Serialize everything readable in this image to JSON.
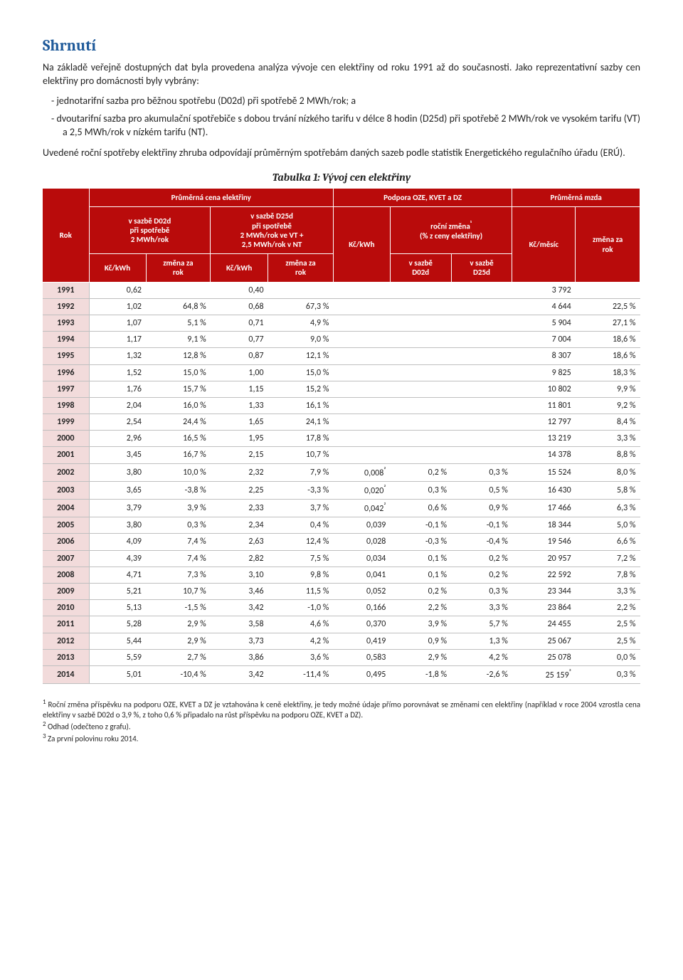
{
  "section_title": "Shrnutí",
  "para1": "Na základě veřejně dostupných dat byla provedena analýza vývoje cen elektřiny od roku 1991 až do současnosti. Jako reprezentativní sazby cen elektřiny pro domácnosti byly vybrány:",
  "bullet1": "jednotarifní sazba pro běžnou spotřebu (D02d) při spotřebě 2 MWh/rok; a",
  "bullet2": "dvoutarifní sazba pro akumulační spotřebiče s dobou trvání nízkého tarifu v délce 8 hodin (D25d) při spotřebě 2 MWh/rok ve vysokém tarifu (VT) a 2,5 MWh/rok v nízkém tarifu (NT).",
  "para2": "Uvedené roční spotřeby elektřiny zhruba odpovídají průměrným spotřebám daných sazeb podle statistik Energetického regulačního úřadu (ERÚ).",
  "table_caption": "Tabulka 1: Vývoj cen elektřiny",
  "headers": {
    "group_avgprice": "Průměrná cena elektřiny",
    "group_support": "Podpora OZE, KVET a DZ",
    "group_wage": "Průměrná mzda",
    "rok": "Rok",
    "d02d": "v sazbě D02d\npři spotřebě\n2 MWh/rok",
    "d25d": "v sazbě D25d\npři spotřebě\n2 MWh/rok ve VT +\n2,5 MWh/rok v NT",
    "annual_change": "roční změna¹\n(% z ceny elektřiny)",
    "kc_kwh": "Kč/kWh",
    "zmena_rok": "změna za\nrok",
    "v_sazbe_d02d": "v sazbě\nD02d",
    "v_sazbe_d25d": "v sazbě\nD25d",
    "kc_mesic": "Kč/měsíc"
  },
  "rows": [
    {
      "year": "1991",
      "d02_kc": "0,62",
      "d02_ch": "",
      "d25_kc": "0,40",
      "d25_ch": "",
      "sup_kc": "",
      "sup_d02": "",
      "sup_d25": "",
      "wage": "3 792",
      "wage_ch": ""
    },
    {
      "year": "1992",
      "d02_kc": "1,02",
      "d02_ch": "64,8 %",
      "d25_kc": "0,68",
      "d25_ch": "67,3 %",
      "sup_kc": "",
      "sup_d02": "",
      "sup_d25": "",
      "wage": "4 644",
      "wage_ch": "22,5 %"
    },
    {
      "year": "1993",
      "d02_kc": "1,07",
      "d02_ch": "5,1 %",
      "d25_kc": "0,71",
      "d25_ch": "4,9 %",
      "sup_kc": "",
      "sup_d02": "",
      "sup_d25": "",
      "wage": "5 904",
      "wage_ch": "27,1 %"
    },
    {
      "year": "1994",
      "d02_kc": "1,17",
      "d02_ch": "9,1 %",
      "d25_kc": "0,77",
      "d25_ch": "9,0 %",
      "sup_kc": "",
      "sup_d02": "",
      "sup_d25": "",
      "wage": "7 004",
      "wage_ch": "18,6 %"
    },
    {
      "year": "1995",
      "d02_kc": "1,32",
      "d02_ch": "12,8 %",
      "d25_kc": "0,87",
      "d25_ch": "12,1 %",
      "sup_kc": "",
      "sup_d02": "",
      "sup_d25": "",
      "wage": "8 307",
      "wage_ch": "18,6 %"
    },
    {
      "year": "1996",
      "d02_kc": "1,52",
      "d02_ch": "15,0 %",
      "d25_kc": "1,00",
      "d25_ch": "15,0 %",
      "sup_kc": "",
      "sup_d02": "",
      "sup_d25": "",
      "wage": "9 825",
      "wage_ch": "18,3 %"
    },
    {
      "year": "1997",
      "d02_kc": "1,76",
      "d02_ch": "15,7 %",
      "d25_kc": "1,15",
      "d25_ch": "15,2 %",
      "sup_kc": "",
      "sup_d02": "",
      "sup_d25": "",
      "wage": "10 802",
      "wage_ch": "9,9 %"
    },
    {
      "year": "1998",
      "d02_kc": "2,04",
      "d02_ch": "16,0 %",
      "d25_kc": "1,33",
      "d25_ch": "16,1 %",
      "sup_kc": "",
      "sup_d02": "",
      "sup_d25": "",
      "wage": "11 801",
      "wage_ch": "9,2 %"
    },
    {
      "year": "1999",
      "d02_kc": "2,54",
      "d02_ch": "24,4 %",
      "d25_kc": "1,65",
      "d25_ch": "24,1 %",
      "sup_kc": "",
      "sup_d02": "",
      "sup_d25": "",
      "wage": "12 797",
      "wage_ch": "8,4 %"
    },
    {
      "year": "2000",
      "d02_kc": "2,96",
      "d02_ch": "16,5 %",
      "d25_kc": "1,95",
      "d25_ch": "17,8 %",
      "sup_kc": "",
      "sup_d02": "",
      "sup_d25": "",
      "wage": "13 219",
      "wage_ch": "3,3 %"
    },
    {
      "year": "2001",
      "d02_kc": "3,45",
      "d02_ch": "16,7 %",
      "d25_kc": "2,15",
      "d25_ch": "10,7 %",
      "sup_kc": "",
      "sup_d02": "",
      "sup_d25": "",
      "wage": "14 378",
      "wage_ch": "8,8 %"
    },
    {
      "year": "2002",
      "d02_kc": "3,80",
      "d02_ch": "10,0 %",
      "d25_kc": "2,32",
      "d25_ch": "7,9 %",
      "sup_kc": "0,008²",
      "sup_d02": "0,2 %",
      "sup_d25": "0,3 %",
      "wage": "15 524",
      "wage_ch": "8,0 %"
    },
    {
      "year": "2003",
      "d02_kc": "3,65",
      "d02_ch": "-3,8 %",
      "d25_kc": "2,25",
      "d25_ch": "-3,3 %",
      "sup_kc": "0,020²",
      "sup_d02": "0,3 %",
      "sup_d25": "0,5 %",
      "wage": "16 430",
      "wage_ch": "5,8 %"
    },
    {
      "year": "2004",
      "d02_kc": "3,79",
      "d02_ch": "3,9 %",
      "d25_kc": "2,33",
      "d25_ch": "3,7 %",
      "sup_kc": "0,042²",
      "sup_d02": "0,6 %",
      "sup_d25": "0,9 %",
      "wage": "17 466",
      "wage_ch": "6,3 %"
    },
    {
      "year": "2005",
      "d02_kc": "3,80",
      "d02_ch": "0,3 %",
      "d25_kc": "2,34",
      "d25_ch": "0,4 %",
      "sup_kc": "0,039",
      "sup_d02": "-0,1 %",
      "sup_d25": "-0,1 %",
      "wage": "18 344",
      "wage_ch": "5,0 %"
    },
    {
      "year": "2006",
      "d02_kc": "4,09",
      "d02_ch": "7,4 %",
      "d25_kc": "2,63",
      "d25_ch": "12,4 %",
      "sup_kc": "0,028",
      "sup_d02": "-0,3 %",
      "sup_d25": "-0,4 %",
      "wage": "19 546",
      "wage_ch": "6,6 %"
    },
    {
      "year": "2007",
      "d02_kc": "4,39",
      "d02_ch": "7,4 %",
      "d25_kc": "2,82",
      "d25_ch": "7,5 %",
      "sup_kc": "0,034",
      "sup_d02": "0,1 %",
      "sup_d25": "0,2 %",
      "wage": "20 957",
      "wage_ch": "7,2 %"
    },
    {
      "year": "2008",
      "d02_kc": "4,71",
      "d02_ch": "7,3 %",
      "d25_kc": "3,10",
      "d25_ch": "9,8 %",
      "sup_kc": "0,041",
      "sup_d02": "0,1 %",
      "sup_d25": "0,2 %",
      "wage": "22 592",
      "wage_ch": "7,8 %"
    },
    {
      "year": "2009",
      "d02_kc": "5,21",
      "d02_ch": "10,7 %",
      "d25_kc": "3,46",
      "d25_ch": "11,5 %",
      "sup_kc": "0,052",
      "sup_d02": "0,2 %",
      "sup_d25": "0,3 %",
      "wage": "23 344",
      "wage_ch": "3,3 %"
    },
    {
      "year": "2010",
      "d02_kc": "5,13",
      "d02_ch": "-1,5 %",
      "d25_kc": "3,42",
      "d25_ch": "-1,0 %",
      "sup_kc": "0,166",
      "sup_d02": "2,2 %",
      "sup_d25": "3,3 %",
      "wage": "23 864",
      "wage_ch": "2,2 %"
    },
    {
      "year": "2011",
      "d02_kc": "5,28",
      "d02_ch": "2,9 %",
      "d25_kc": "3,58",
      "d25_ch": "4,6 %",
      "sup_kc": "0,370",
      "sup_d02": "3,9 %",
      "sup_d25": "5,7 %",
      "wage": "24 455",
      "wage_ch": "2,5 %"
    },
    {
      "year": "2012",
      "d02_kc": "5,44",
      "d02_ch": "2,9 %",
      "d25_kc": "3,73",
      "d25_ch": "4,2 %",
      "sup_kc": "0,419",
      "sup_d02": "0,9 %",
      "sup_d25": "1,3 %",
      "wage": "25 067",
      "wage_ch": "2,5 %"
    },
    {
      "year": "2013",
      "d02_kc": "5,59",
      "d02_ch": "2,7 %",
      "d25_kc": "3,86",
      "d25_ch": "3,6 %",
      "sup_kc": "0,583",
      "sup_d02": "2,9 %",
      "sup_d25": "4,2 %",
      "wage": "25 078",
      "wage_ch": "0,0 %"
    },
    {
      "year": "2014",
      "d02_kc": "5,01",
      "d02_ch": "-10,4 %",
      "d25_kc": "3,42",
      "d25_ch": "-11,4 %",
      "sup_kc": "0,495",
      "sup_d02": "-1,8 %",
      "sup_d25": "-2,6 %",
      "wage": "25 159³",
      "wage_ch": "0,3 %"
    }
  ],
  "footnote1_sup": "1",
  "footnote1": " Roční změna příspěvku na podporu OZE, KVET a DZ je vztahována k ceně elektřiny, je tedy možné údaje přímo porovnávat se změnami cen elektřiny (například v roce 2004 vzrostla cena elektřiny v sazbě D02d o 3,9 %, z toho 0,6 % připadalo na růst příspěvku na podporu OZE, KVET a DZ).",
  "footnote2_sup": "2",
  "footnote2": " Odhad (odečteno z grafu).",
  "footnote3_sup": "3",
  "footnote3": " Za první polovinu roku 2014."
}
